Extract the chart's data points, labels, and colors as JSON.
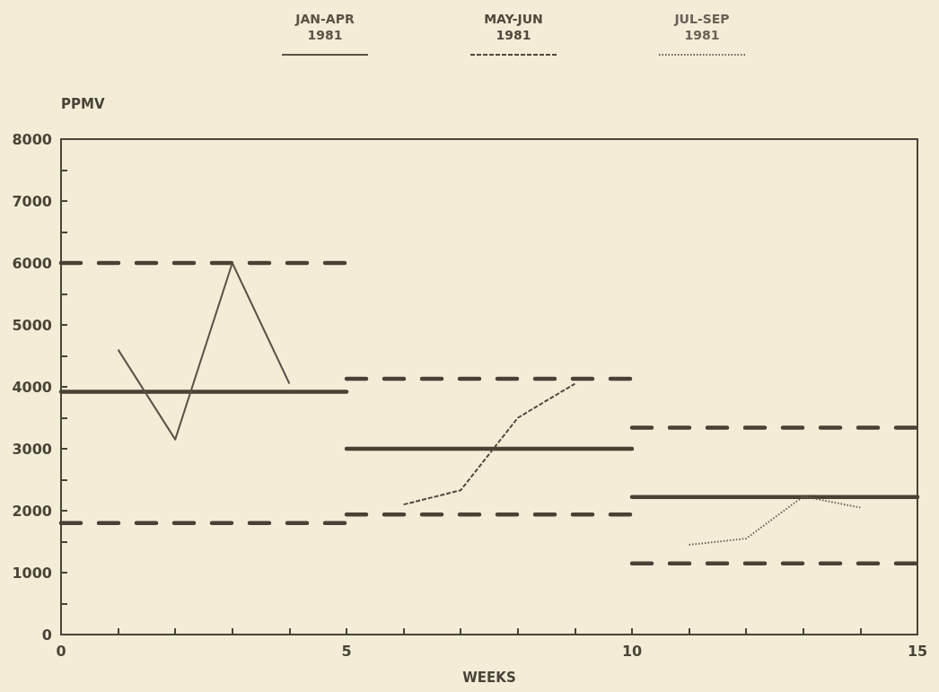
{
  "chart_data": {
    "type": "line",
    "xlabel": "WEEKS",
    "ylabel": "PPMV",
    "xlim": [
      0,
      15
    ],
    "ylim": [
      0,
      8000
    ],
    "xticks": [
      0,
      {
        "value": 1,
        "label": null
      },
      {
        "value": 2,
        "label": null
      },
      {
        "value": 3,
        "label": null
      },
      {
        "value": 4,
        "label": null
      },
      5,
      {
        "value": 6,
        "label": null
      },
      {
        "value": 7,
        "label": null
      },
      {
        "value": 8,
        "label": null
      },
      {
        "value": 9,
        "label": null
      },
      10,
      {
        "value": 11,
        "label": null
      },
      {
        "value": 12,
        "label": null
      },
      {
        "value": 13,
        "label": null
      },
      {
        "value": 14,
        "label": null
      },
      15
    ],
    "yticks": [
      0,
      {
        "value": 500,
        "label": null
      },
      1000,
      {
        "value": 1500,
        "label": null
      },
      2000,
      {
        "value": 2500,
        "label": null
      },
      3000,
      {
        "value": 3500,
        "label": null
      },
      4000,
      {
        "value": 4500,
        "label": null
      },
      5000,
      {
        "value": 5500,
        "label": null
      },
      6000,
      {
        "value": 6500,
        "label": null
      },
      7000,
      {
        "value": 7500,
        "label": null
      },
      8000
    ],
    "legend": "top",
    "marker": "none",
    "series": [
      {
        "name": "JAN-APR 1981",
        "color": "#5c5247",
        "x": [
          1,
          2,
          3,
          4
        ],
        "values": [
          4600,
          3150,
          6000,
          4050
        ],
        "line_style": "solid"
      },
      {
        "name": "MAY-JUN 1981",
        "color": "#51483e",
        "x": [
          6,
          7,
          8,
          9
        ],
        "values": [
          2100,
          2330,
          3500,
          4050
        ],
        "line_style": "dashed"
      },
      {
        "name": "JUL-SEP 1981",
        "color": "#6a6157",
        "x": [
          11,
          12,
          13,
          14
        ],
        "values": [
          1450,
          1550,
          2230,
          2050
        ],
        "line_style": "dotted"
      },
      {
        "color": "#4a4136",
        "x": [
          0,
          5
        ],
        "values": [
          3920,
          3920
        ],
        "line_style": "solid"
      },
      {
        "color": "#4a4136",
        "x": [
          0,
          5
        ],
        "values": [
          6000,
          6000
        ],
        "line_style": "dashed"
      },
      {
        "color": "#4a4136",
        "x": [
          0,
          5
        ],
        "values": [
          1800,
          1800
        ],
        "line_style": "dashed"
      },
      {
        "color": "#4a4136",
        "x": [
          5,
          10
        ],
        "values": [
          3000,
          3000
        ],
        "line_style": "solid"
      },
      {
        "color": "#4a4136",
        "x": [
          5,
          10
        ],
        "values": [
          4130,
          4130
        ],
        "line_style": "dashed"
      },
      {
        "color": "#4a4136",
        "x": [
          5,
          10
        ],
        "values": [
          1940,
          1940
        ],
        "line_style": "dashed"
      },
      {
        "color": "#4a4136",
        "x": [
          10,
          15
        ],
        "values": [
          2220,
          2220
        ],
        "line_style": "solid"
      },
      {
        "color": "#4a4136",
        "x": [
          10,
          15
        ],
        "values": [
          3340,
          3340
        ],
        "line_style": "dashed"
      },
      {
        "color": "#4a4136",
        "x": [
          10,
          15
        ],
        "values": [
          1150,
          1150
        ],
        "line_style": "dashed"
      }
    ]
  }
}
